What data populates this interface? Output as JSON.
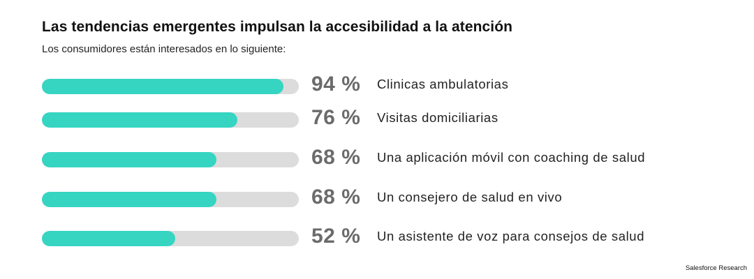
{
  "accent_color": "#35d5c2",
  "track_color": "#dcdcdc",
  "source": "Salesforce Research",
  "chart_data": {
    "type": "bar",
    "orientation": "horizontal",
    "title": "Las tendencias emergentes impulsan la accesibilidad a la atención",
    "subtitle": "Los consumidores están interesados en lo siguiente:",
    "categories": [
      "Clinicas ambulatorias",
      "Visitas domiciliarias",
      "Una aplicación móvil con coaching de salud",
      "Un consejero de salud en vivo",
      "Un asistente de voz para consejos de salud"
    ],
    "values": [
      94,
      76,
      68,
      68,
      52
    ],
    "value_labels": [
      "94 %",
      "76 %",
      "68 %",
      "68 %",
      "52 %"
    ],
    "xlim": [
      0,
      100
    ],
    "unit": "%"
  }
}
